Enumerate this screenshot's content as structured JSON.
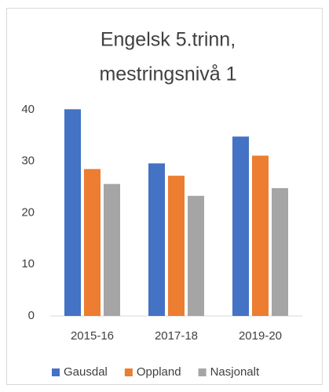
{
  "chart_data": {
    "type": "bar",
    "title": [
      "Engelsk 5.trinn,",
      "mestringsnivå 1"
    ],
    "categories": [
      "2015-16",
      "2017-18",
      "2019-20"
    ],
    "series": [
      {
        "name": "Gausdal",
        "color": "#4472c4",
        "values": [
          40.1,
          29.6,
          34.8
        ]
      },
      {
        "name": "Oppland",
        "color": "#ed7d31",
        "values": [
          28.5,
          27.2,
          31.1
        ]
      },
      {
        "name": "Nasjonalt",
        "color": "#a5a5a5",
        "values": [
          25.6,
          23.3,
          24.8
        ]
      }
    ],
    "ylim": [
      0,
      40
    ],
    "yticks": [
      0,
      10,
      20,
      30,
      40
    ],
    "grid": false,
    "legend": "bottom"
  }
}
